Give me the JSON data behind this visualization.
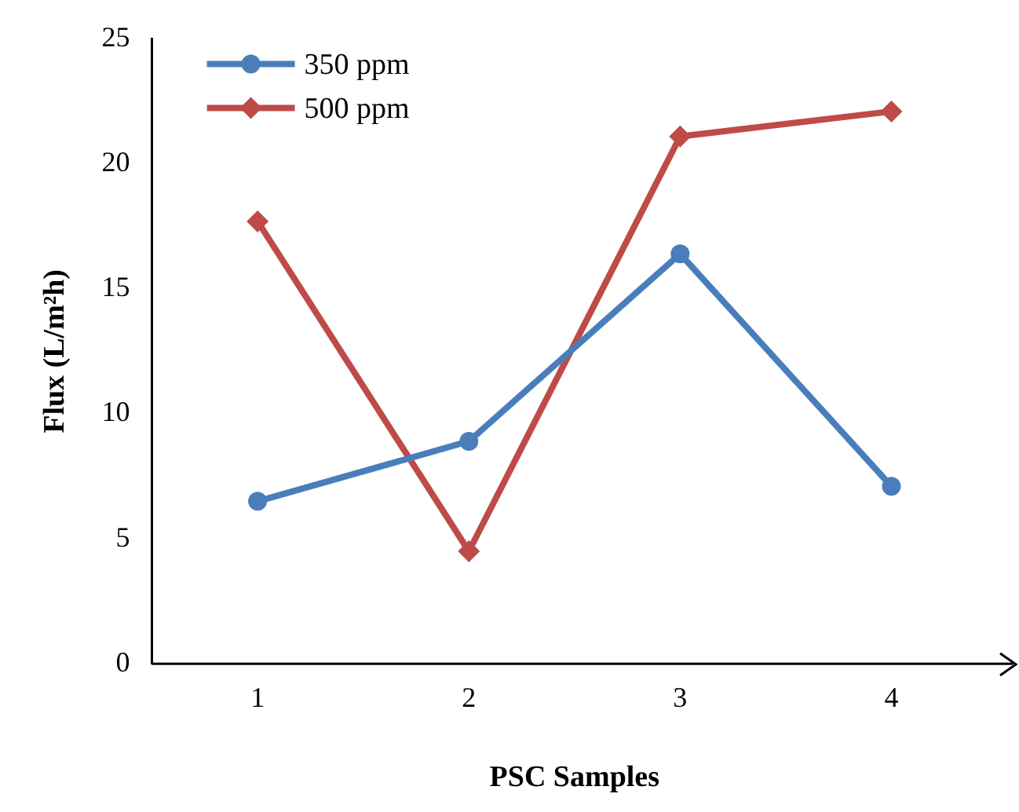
{
  "chart_data": {
    "type": "line",
    "xlabel": "PSC Samples",
    "ylabel": "Flux (L/m²h)",
    "categories": [
      "1",
      "2",
      "3",
      "4"
    ],
    "series": [
      {
        "name": "350 ppm",
        "color": "#4a7ebb",
        "marker": "circle",
        "values": [
          6.5,
          8.9,
          16.4,
          7.1
        ]
      },
      {
        "name": "500 ppm",
        "color": "#be4b48",
        "marker": "diamond",
        "values": [
          17.7,
          4.5,
          21.1,
          22.1
        ]
      }
    ],
    "ylim": [
      0,
      25
    ],
    "yticks": [
      0,
      5,
      10,
      15,
      20,
      25
    ],
    "grid": false,
    "legend": "top left"
  }
}
